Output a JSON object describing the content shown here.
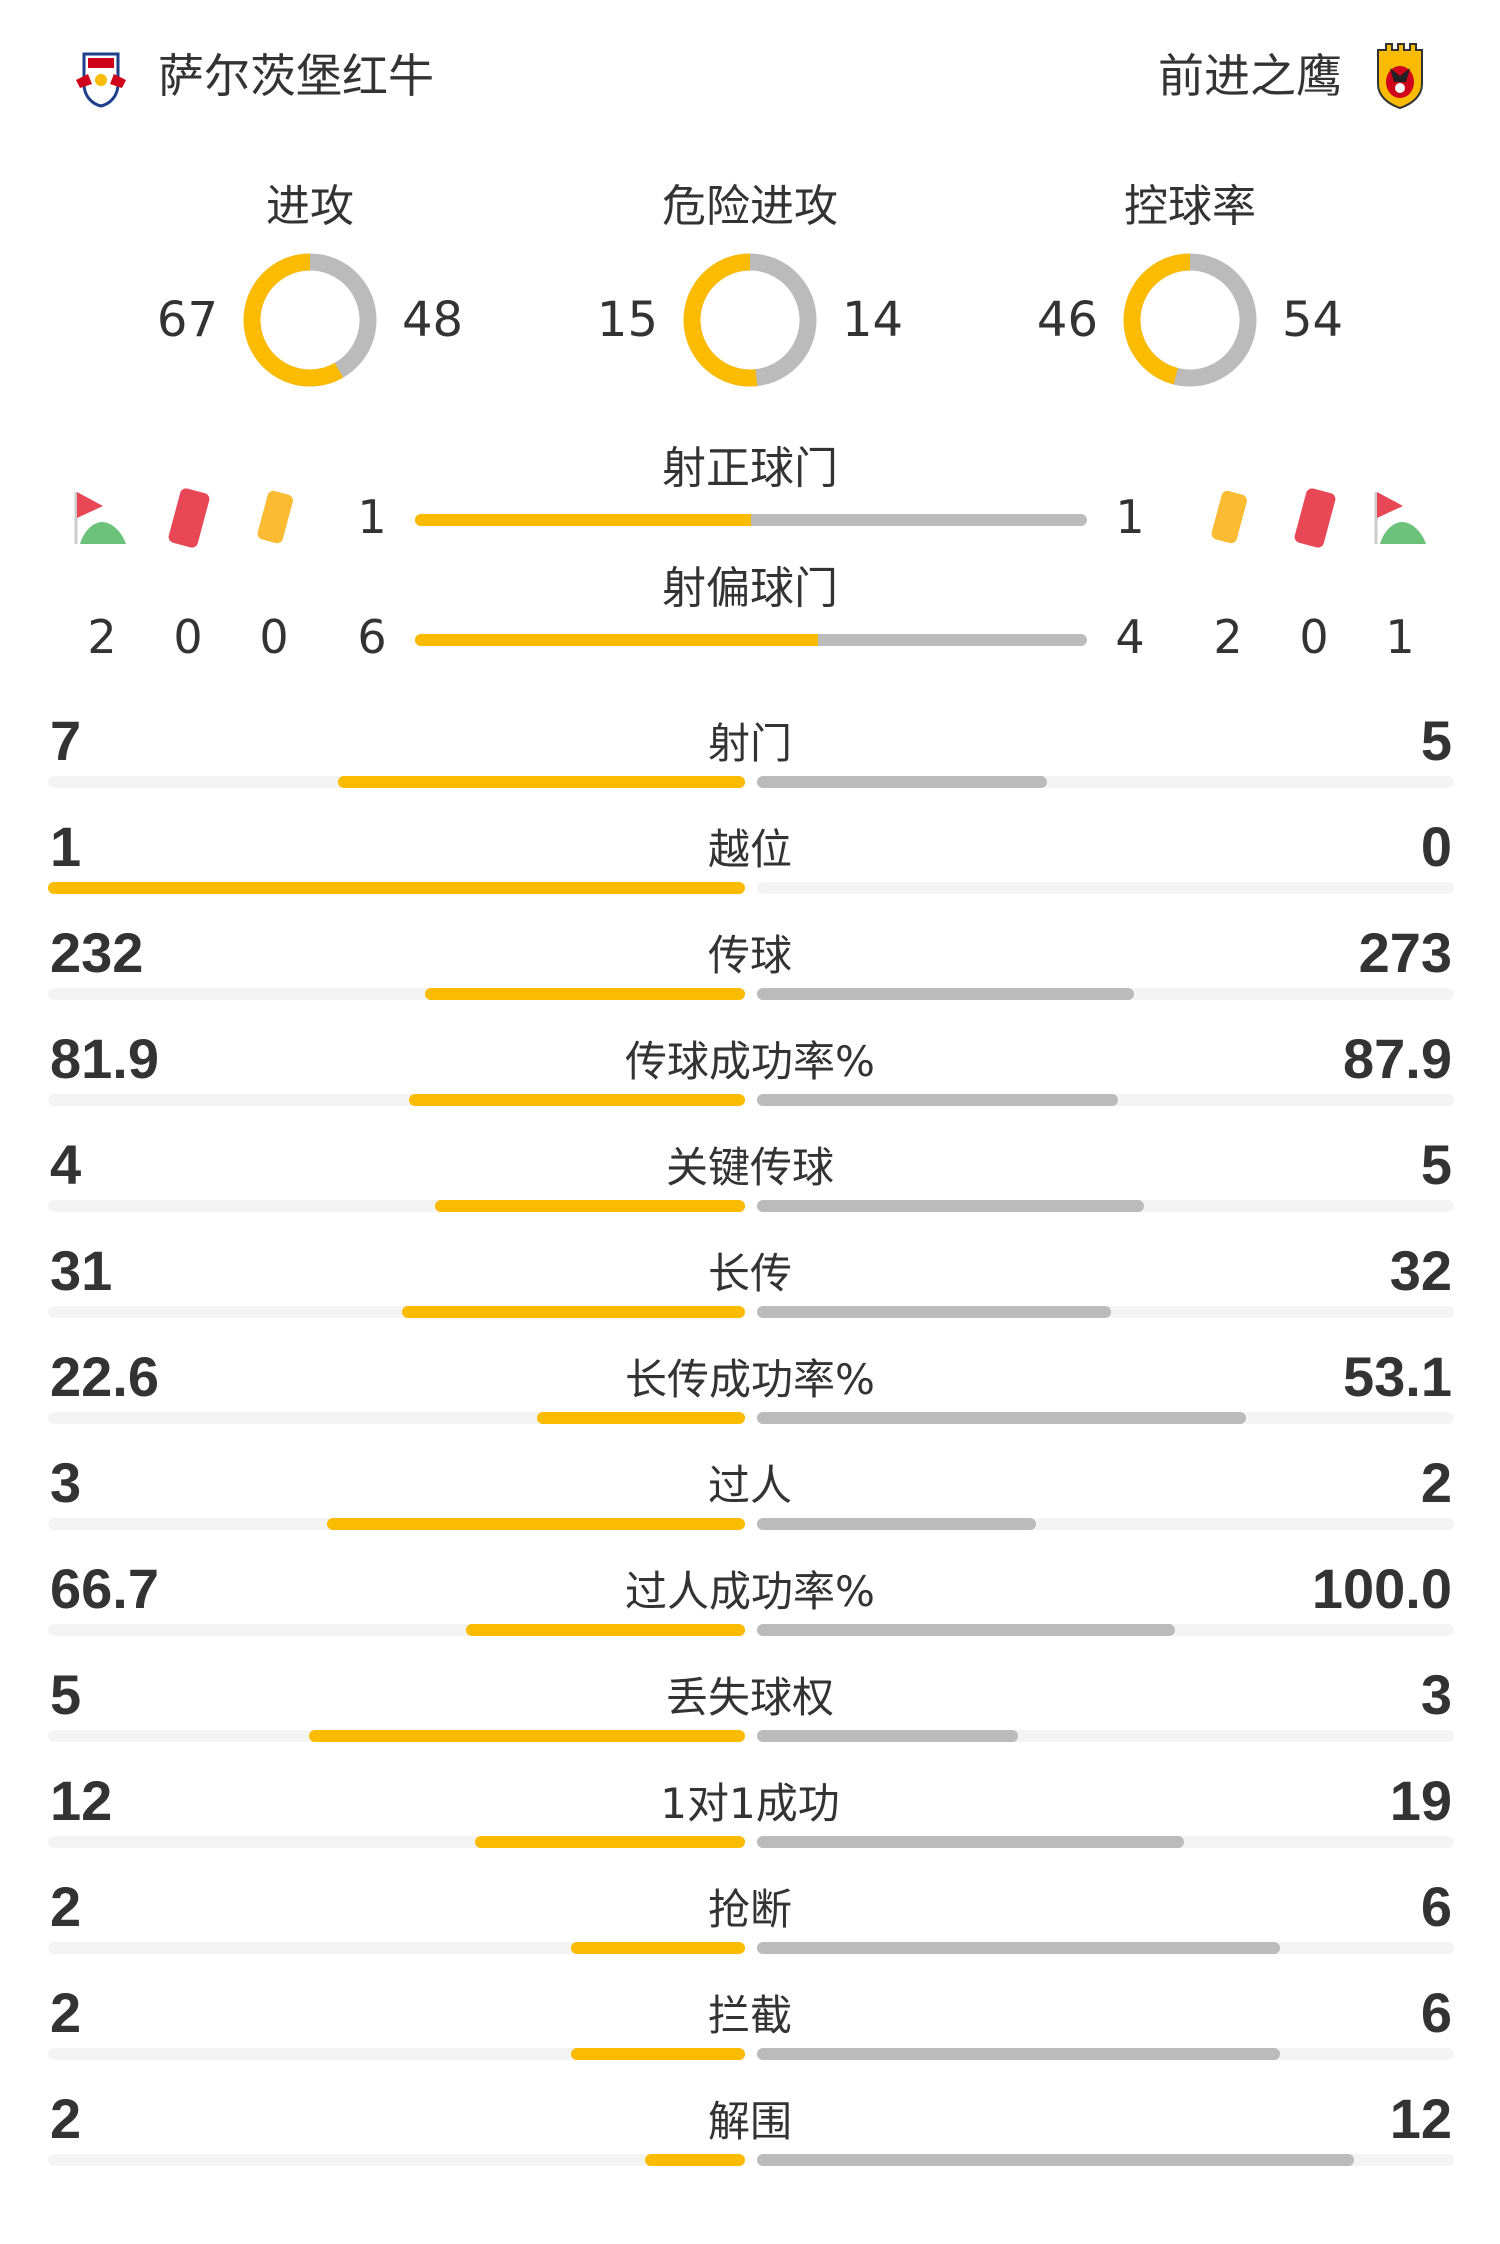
{
  "colors": {
    "home": "#fbbb00",
    "away": "#bbbbbb",
    "track": "#f4f4f4",
    "red_card": "#e84855",
    "yellow_card": "#fbbb33"
  },
  "header": {
    "home_name": "萨尔茨堡红牛",
    "away_name": "前进之鹰",
    "home_logo": "Red Bull Salzburg",
    "away_logo": "Go Ahead Eagles Deventer"
  },
  "donuts": [
    {
      "title": "进攻",
      "home": "67",
      "away": "48"
    },
    {
      "title": "危险进攻",
      "home": "15",
      "away": "14"
    },
    {
      "title": "控球率",
      "home": "46",
      "away": "54"
    }
  ],
  "shots_on": {
    "label": "射正球门",
    "home": "1",
    "away": "1"
  },
  "shots_off": {
    "label": "射偏球门",
    "home": "6",
    "away": "4"
  },
  "events": {
    "home": {
      "corner": "2",
      "red": "0",
      "yellow": "0"
    },
    "away": {
      "yellow": "2",
      "red": "0",
      "corner": "1"
    }
  },
  "stats": [
    {
      "label": "射门",
      "home": "7",
      "away": "5"
    },
    {
      "label": "越位",
      "home": "1",
      "away": "0"
    },
    {
      "label": "传球",
      "home": "232",
      "away": "273"
    },
    {
      "label": "传球成功率%",
      "home": "81.9",
      "away": "87.9"
    },
    {
      "label": "关键传球",
      "home": "4",
      "away": "5"
    },
    {
      "label": "长传",
      "home": "31",
      "away": "32"
    },
    {
      "label": "长传成功率%",
      "home": "22.6",
      "away": "53.1"
    },
    {
      "label": "过人",
      "home": "3",
      "away": "2"
    },
    {
      "label": "过人成功率%",
      "home": "66.7",
      "away": "100.0"
    },
    {
      "label": "丢失球权",
      "home": "5",
      "away": "3"
    },
    {
      "label": "1对1成功",
      "home": "12",
      "away": "19"
    },
    {
      "label": "抢断",
      "home": "2",
      "away": "6"
    },
    {
      "label": "拦截",
      "home": "2",
      "away": "6"
    },
    {
      "label": "解围",
      "home": "2",
      "away": "12"
    }
  ]
}
